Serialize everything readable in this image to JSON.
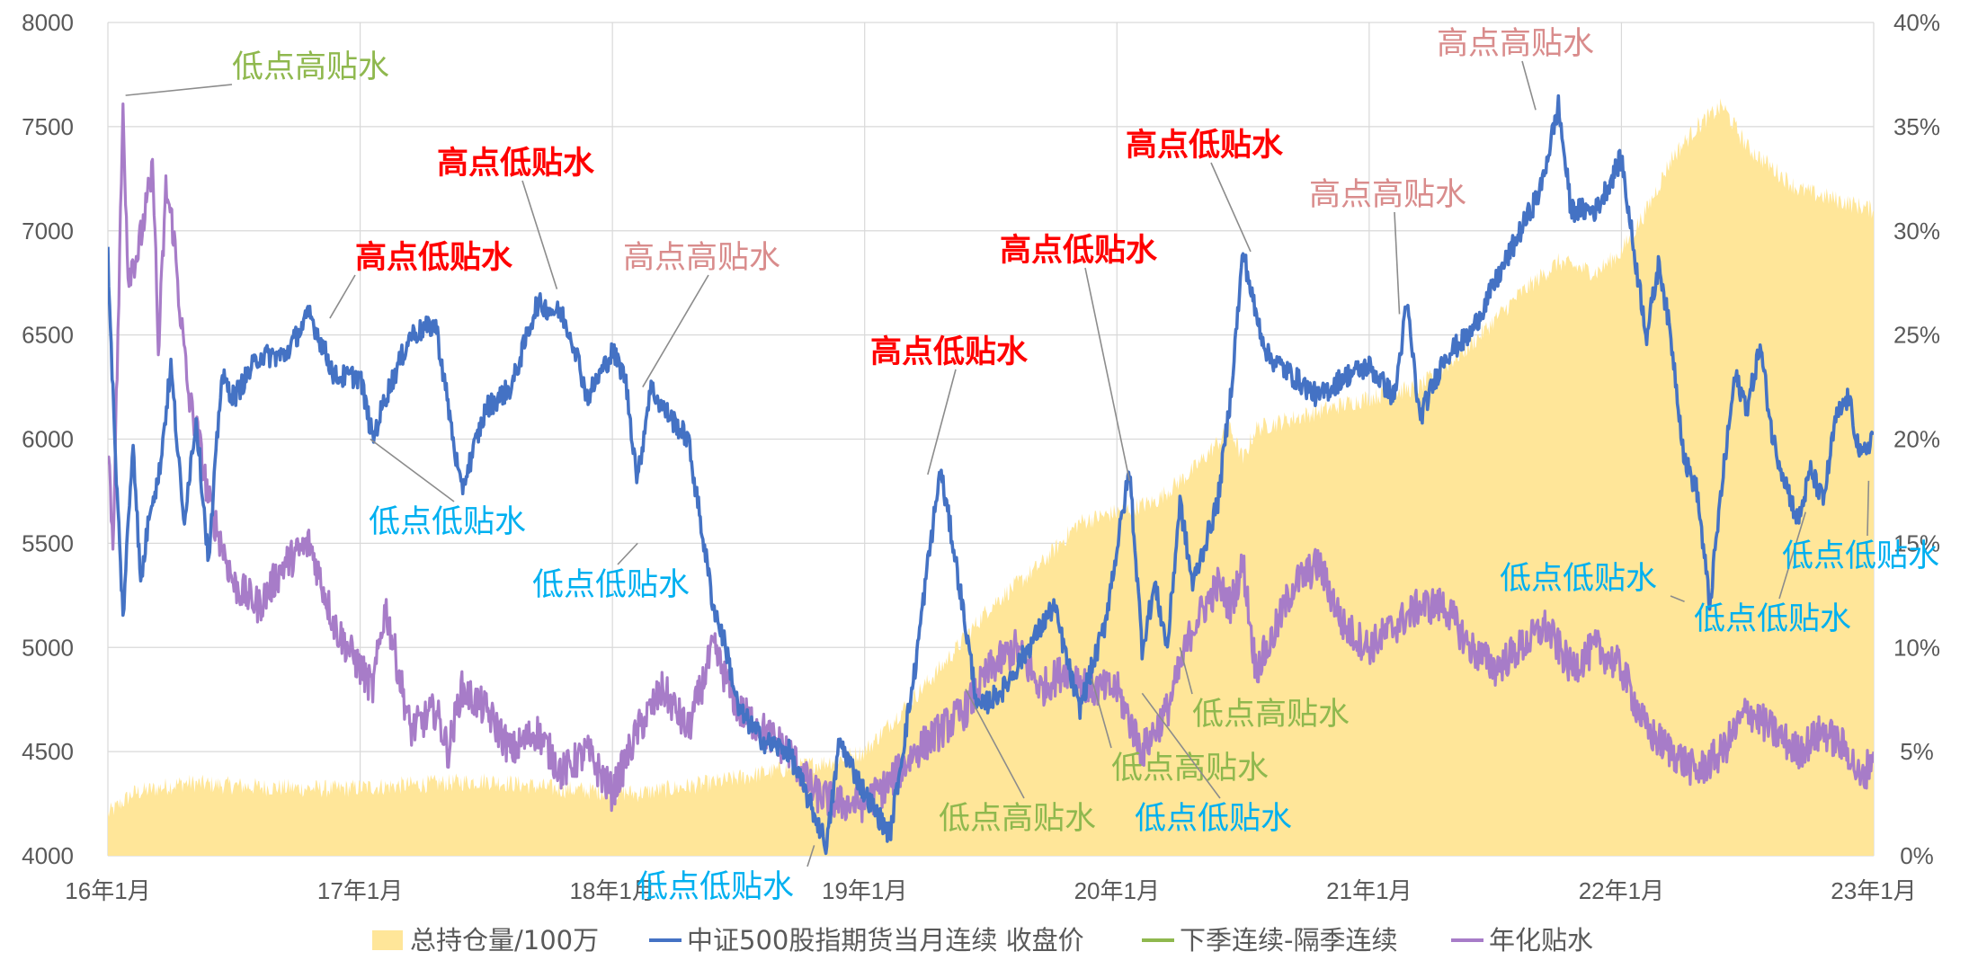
{
  "chart_data": {
    "type": "line",
    "title": "",
    "xlabel": "",
    "ylabel": "",
    "x_tick_labels": [
      "16年1月",
      "17年1月",
      "18年1月",
      "19年1月",
      "20年1月",
      "21年1月",
      "22年1月",
      "23年1月"
    ],
    "y_left_ticks": [
      "4000",
      "4500",
      "5000",
      "5500",
      "6000",
      "6500",
      "7000",
      "7500",
      "8000"
    ],
    "y_right_ticks": [
      "0%",
      "5%",
      "10%",
      "15%",
      "20%",
      "25%",
      "30%",
      "35%",
      "40%"
    ],
    "ylim_left": [
      4000,
      8000
    ],
    "ylim_right": [
      0,
      40
    ],
    "x_range": [
      2016.0,
      2023.0
    ],
    "grid": true,
    "legend_position": "bottom",
    "colors": {
      "area": "#FFE699",
      "price": "#4472C4",
      "spread": "#8FB84E",
      "annual": "#A77CC8",
      "annot_red": "#FF0000",
      "annot_pink": "#D98C8C",
      "annot_blue": "#00B0F0",
      "annot_green": "#8FB84E",
      "grid": "#D9D9D9"
    },
    "series": [
      {
        "name": "总持仓量/100万",
        "axis": "right",
        "kind": "area",
        "x": [
          2016.0,
          2016.1,
          2016.3,
          2016.6,
          2016.9,
          2017.2,
          2017.5,
          2017.8,
          2018.1,
          2018.4,
          2018.7,
          2018.85,
          2019.0,
          2019.15,
          2019.3,
          2019.5,
          2019.7,
          2019.85,
          2020.0,
          2020.15,
          2020.3,
          2020.45,
          2020.5,
          2020.55,
          2020.7,
          2020.85,
          2021.0,
          2021.2,
          2021.4,
          2021.6,
          2021.75,
          2021.9,
          2022.0,
          2022.1,
          2022.2,
          2022.3,
          2022.4,
          2022.5,
          2022.7,
          2022.85,
          2023.0
        ],
        "values": [
          2.0,
          3.0,
          3.5,
          3.3,
          3.2,
          3.4,
          3.6,
          3.2,
          3.0,
          3.5,
          4.2,
          4.5,
          5.0,
          7.0,
          9.0,
          12.0,
          14.0,
          16.0,
          16.5,
          17.0,
          18.5,
          20.5,
          19.0,
          20.5,
          21.0,
          21.5,
          22.0,
          22.5,
          24.5,
          27.0,
          28.5,
          28.0,
          29.0,
          31.0,
          33.5,
          35.0,
          36.0,
          34.0,
          32.0,
          31.5,
          31.0
        ]
      },
      {
        "name": "中证500股指期货当月连续 收盘价",
        "axis": "left",
        "kind": "line",
        "x": [
          2016.0,
          2016.03,
          2016.06,
          2016.1,
          2016.13,
          2016.17,
          2016.2,
          2016.25,
          2016.3,
          2016.35,
          2016.4,
          2016.45,
          2016.5,
          2016.6,
          2016.7,
          2016.8,
          2016.9,
          2017.0,
          2017.05,
          2017.1,
          2017.2,
          2017.3,
          2017.4,
          2017.5,
          2017.6,
          2017.7,
          2017.8,
          2017.85,
          2017.9,
          2018.0,
          2018.05,
          2018.1,
          2018.15,
          2018.2,
          2018.3,
          2018.4,
          2018.45,
          2018.5,
          2018.6,
          2018.7,
          2018.8,
          2018.85,
          2018.9,
          2019.0,
          2019.1,
          2019.2,
          2019.25,
          2019.3,
          2019.35,
          2019.45,
          2019.55,
          2019.65,
          2019.75,
          2019.85,
          2019.95,
          2020.05,
          2020.1,
          2020.15,
          2020.2,
          2020.25,
          2020.3,
          2020.4,
          2020.45,
          2020.5,
          2020.55,
          2020.6,
          2020.7,
          2020.8,
          2020.9,
          2021.0,
          2021.1,
          2021.15,
          2021.2,
          2021.3,
          2021.4,
          2021.5,
          2021.6,
          2021.68,
          2021.75,
          2021.8,
          2021.9,
          2022.0,
          2022.05,
          2022.1,
          2022.15,
          2022.2,
          2022.25,
          2022.3,
          2022.35,
          2022.4,
          2022.45,
          2022.5,
          2022.55,
          2022.6,
          2022.65,
          2022.7,
          2022.75,
          2022.8,
          2022.85,
          2022.9,
          2022.95,
          2023.0
        ],
        "values": [
          6880,
          5900,
          5150,
          6000,
          5300,
          5700,
          5800,
          6350,
          5600,
          6100,
          5400,
          6300,
          6200,
          6400,
          6400,
          6600,
          6300,
          6300,
          6000,
          6200,
          6500,
          6550,
          5750,
          6150,
          6250,
          6650,
          6600,
          6450,
          6200,
          6420,
          6300,
          5800,
          6250,
          6150,
          6000,
          5200,
          5000,
          4700,
          4550,
          4500,
          4200,
          4050,
          4550,
          4300,
          4100,
          4900,
          5400,
          5850,
          5500,
          4700,
          4800,
          5000,
          5200,
          4700,
          5100,
          5850,
          5000,
          5300,
          5000,
          5700,
          5300,
          5700,
          6200,
          6900,
          6600,
          6400,
          6300,
          6200,
          6300,
          6350,
          6200,
          6650,
          6100,
          6400,
          6500,
          6750,
          7000,
          7200,
          7600,
          7100,
          7100,
          7350,
          6900,
          6500,
          6850,
          6450,
          5900,
          5750,
          5200,
          5800,
          6300,
          6150,
          6450,
          6000,
          5800,
          5600,
          5850,
          5700,
          6100,
          6200,
          5900,
          6030
        ]
      },
      {
        "name": "下季连续-隔季连续",
        "axis": "right",
        "kind": "line",
        "x": [],
        "values": []
      },
      {
        "name": "年化贴水",
        "axis": "right",
        "kind": "line",
        "x": [
          2016.0,
          2016.02,
          2016.04,
          2016.06,
          2016.08,
          2016.12,
          2016.15,
          2016.18,
          2016.2,
          2016.23,
          2016.26,
          2016.28,
          2016.32,
          2016.36,
          2016.4,
          2016.45,
          2016.5,
          2016.6,
          2016.7,
          2016.8,
          2016.9,
          2017.0,
          2017.05,
          2017.1,
          2017.2,
          2017.3,
          2017.35,
          2017.4,
          2017.5,
          2017.6,
          2017.7,
          2017.8,
          2017.9,
          2018.0,
          2018.1,
          2018.2,
          2018.3,
          2018.4,
          2018.5,
          2018.6,
          2018.7,
          2018.8,
          2018.9,
          2019.0,
          2019.1,
          2019.2,
          2019.3,
          2019.4,
          2019.5,
          2019.6,
          2019.7,
          2019.8,
          2019.9,
          2020.0,
          2020.1,
          2020.2,
          2020.3,
          2020.4,
          2020.45,
          2020.5,
          2020.55,
          2020.6,
          2020.7,
          2020.8,
          2020.9,
          2021.0,
          2021.1,
          2021.2,
          2021.3,
          2021.4,
          2021.5,
          2021.6,
          2021.7,
          2021.8,
          2021.9,
          2022.0,
          2022.1,
          2022.2,
          2022.3,
          2022.4,
          2022.5,
          2022.6,
          2022.7,
          2022.8,
          2022.9,
          2022.95,
          2023.0
        ],
        "values": [
          20,
          15,
          25,
          36,
          28,
          29,
          31,
          33,
          24,
          32,
          30,
          27,
          22,
          20,
          17,
          15,
          13,
          12,
          14,
          15,
          11,
          9,
          8,
          12,
          6,
          7,
          5,
          8,
          7,
          5,
          6,
          4,
          5,
          3,
          6,
          8,
          6,
          10,
          7,
          6,
          5,
          3,
          2.5,
          2.5,
          3.5,
          5,
          6,
          7,
          9,
          10,
          8,
          9,
          8,
          8,
          5,
          7,
          11,
          13,
          12,
          14,
          9,
          10,
          13,
          14,
          11,
          10,
          11,
          12,
          12,
          10,
          9,
          10,
          11,
          9,
          10,
          9,
          6,
          5,
          4,
          5,
          7,
          6,
          5,
          6,
          5,
          3.5,
          5
        ]
      }
    ],
    "annotations": [
      {
        "text": "低点高贴水",
        "color": "green",
        "bold": false,
        "target_x": 2016.07,
        "target_y_right": 36.5
      },
      {
        "text": "高点低贴水",
        "color": "red",
        "bold": true,
        "target_x": 2016.88,
        "target_y": 6580
      },
      {
        "text": "高点低贴水",
        "color": "red",
        "bold": true,
        "target_x": 2017.78,
        "target_y": 6720
      },
      {
        "text": "高点高贴水",
        "color": "pink",
        "bold": false,
        "target_x": 2018.12,
        "target_y": 6250
      },
      {
        "text": "低点低贴水",
        "color": "blue",
        "bold": false,
        "target_x": 2017.04,
        "target_y": 6000
      },
      {
        "text": "低点低贴水",
        "color": "blue",
        "bold": false,
        "target_x": 2018.1,
        "target_y": 5500
      },
      {
        "text": "低点低贴水",
        "color": "blue",
        "bold": false,
        "target_x": 2018.8,
        "target_y": 4050
      },
      {
        "text": "高点低贴水",
        "color": "red",
        "bold": true,
        "target_x": 2019.25,
        "target_y": 5830
      },
      {
        "text": "高点低贴水",
        "color": "red",
        "bold": true,
        "target_x": 2020.05,
        "target_y": 5800
      },
      {
        "text": "高点低贴水",
        "color": "red",
        "bold": true,
        "target_x": 2020.53,
        "target_y": 6900
      },
      {
        "text": "高点高贴水",
        "color": "pink",
        "bold": false,
        "target_x": 2021.12,
        "target_y": 6600
      },
      {
        "text": "高点高贴水",
        "color": "pink",
        "bold": false,
        "target_x": 2021.66,
        "target_y": 7580
      },
      {
        "text": "低点高贴水",
        "color": "green",
        "bold": false,
        "target_x": 2019.4,
        "target_y_right": 8.0
      },
      {
        "text": "低点高贴水",
        "color": "green",
        "bold": false,
        "target_x": 2019.9,
        "target_y_right": 8.5
      },
      {
        "text": "低点高贴水",
        "color": "green",
        "bold": false,
        "target_x": 2020.25,
        "target_y_right": 10.0
      },
      {
        "text": "低点低贴水",
        "color": "blue",
        "bold": false,
        "target_x": 2020.1,
        "target_y": 4780
      },
      {
        "text": "低点低贴水",
        "color": "blue",
        "bold": false,
        "target_x": 2022.25,
        "target_y": 5220
      },
      {
        "text": "低点低贴水",
        "color": "blue",
        "bold": false,
        "target_x": 2022.73,
        "target_y": 5650
      },
      {
        "text": "低点低贴水",
        "color": "blue",
        "bold": false,
        "target_x": 2022.98,
        "target_y": 5800
      }
    ]
  }
}
